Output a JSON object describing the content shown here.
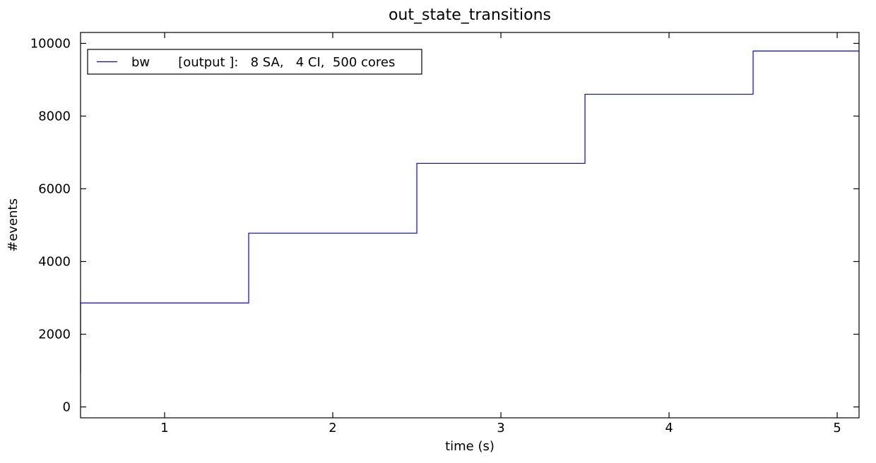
{
  "chart_data": {
    "type": "line",
    "step": true,
    "title": "out_state_transitions",
    "xlabel": "time (s)",
    "ylabel": "#events",
    "xlim": [
      0.5,
      5.13
    ],
    "ylim": [
      -300,
      10300
    ],
    "x_ticks": [
      1,
      2,
      3,
      4,
      5
    ],
    "y_ticks": [
      0,
      2000,
      4000,
      6000,
      8000,
      10000
    ],
    "x_tick_labels": [
      "1",
      "2",
      "3",
      "4",
      "5"
    ],
    "y_tick_labels": [
      "0",
      "2000",
      "4000",
      "6000",
      "8000",
      "10000"
    ],
    "grid": false,
    "legend": {
      "position": "top-left",
      "text": "bw       [output ]:   8 SA,   4 CI,  500 cores"
    },
    "series": [
      {
        "name": "bw       [output ]:   8 SA,   4 CI,  500 cores",
        "color": "#0000ff",
        "points": [
          [
            0.5,
            940
          ],
          [
            0.5,
            2860
          ],
          [
            1.5,
            2860
          ],
          [
            1.5,
            4780
          ],
          [
            2.5,
            4780
          ],
          [
            2.5,
            6700
          ],
          [
            3.5,
            6700
          ],
          [
            3.5,
            8600
          ],
          [
            4.5,
            8600
          ],
          [
            4.5,
            9790
          ],
          [
            5.13,
            9790
          ]
        ]
      }
    ]
  }
}
